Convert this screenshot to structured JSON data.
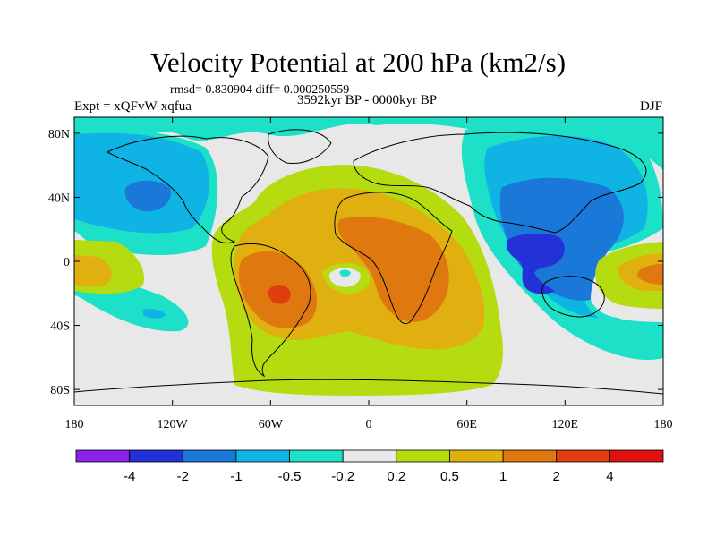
{
  "chart_data": {
    "type": "contour_map",
    "title": "Velocity Potential at 200 hPa (km2/s)",
    "stats": "rmsd= 0.830904 diff= 0.000250559",
    "experiment": "Expt = xQFvW-xqfua",
    "period": "3592kyr BP - 0000kyr BP",
    "season": "DJF",
    "x_range": [
      -180,
      180
    ],
    "y_range": [
      -90,
      90
    ],
    "x_ticks": [
      {
        "value": -180,
        "label": "180"
      },
      {
        "value": -120,
        "label": "120W"
      },
      {
        "value": -60,
        "label": "60W"
      },
      {
        "value": 0,
        "label": "0"
      },
      {
        "value": 60,
        "label": "60E"
      },
      {
        "value": 120,
        "label": "120E"
      },
      {
        "value": 180,
        "label": "180"
      }
    ],
    "y_ticks": [
      {
        "value": 80,
        "label": "80N"
      },
      {
        "value": 40,
        "label": "40N"
      },
      {
        "value": 0,
        "label": "0"
      },
      {
        "value": -40,
        "label": "40S"
      },
      {
        "value": -80,
        "label": "80S"
      }
    ],
    "colorbar": {
      "levels": [
        "-4",
        "-2",
        "-1",
        "-0.5",
        "-0.2",
        "0.2",
        "0.5",
        "1",
        "2",
        "4"
      ],
      "colors": [
        "#8a22e8",
        "#2430d8",
        "#1a78d8",
        "#10b4e4",
        "#1ce0c8",
        "#e8e8e8",
        "#b4dc10",
        "#e0b010",
        "#e07810",
        "#e03e10",
        "#e01010"
      ]
    },
    "regions": [
      {
        "name": "north-pacific-negative",
        "level": "-0.5..-0.2",
        "center": [
          -150,
          30
        ]
      },
      {
        "name": "atlantic-positive",
        "level": "0.2..0.5",
        "center": [
          -20,
          10
        ]
      },
      {
        "name": "south-america-max",
        "level": "2..4",
        "center": [
          -55,
          -15
        ]
      },
      {
        "name": "africa-positive",
        "level": "1..2",
        "center": [
          30,
          0
        ]
      },
      {
        "name": "maritime-continent-min",
        "level": "-2..-4",
        "center": [
          105,
          10
        ]
      },
      {
        "name": "west-pacific-positive",
        "level": "0.5..1",
        "center": [
          165,
          -5
        ]
      }
    ]
  }
}
